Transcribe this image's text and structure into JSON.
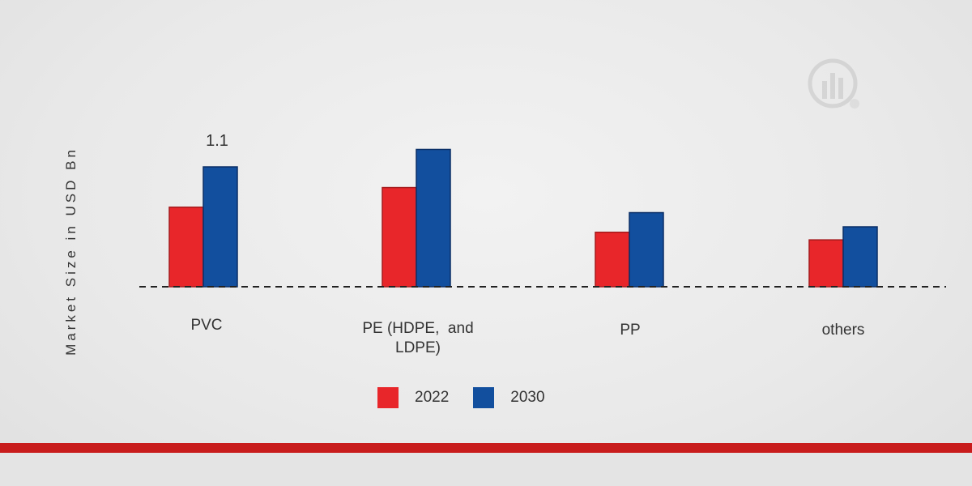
{
  "chart_data": {
    "type": "bar",
    "title": "",
    "xlabel": "",
    "ylabel": "Market Size in USD Bn",
    "categories": [
      "PVC",
      "PE (HDPE, and LDPE)",
      "PP",
      "others"
    ],
    "series": [
      {
        "name": "2022",
        "color": "#e8262a",
        "values": [
          0.73,
          0.91,
          0.5,
          0.43
        ]
      },
      {
        "name": "2030",
        "color": "#124f9e",
        "values": [
          1.1,
          1.26,
          0.68,
          0.55
        ]
      }
    ],
    "data_labels": [
      {
        "category": "PVC",
        "series": "2030",
        "text": "1.1"
      }
    ],
    "ylim": [
      0,
      1.5
    ],
    "grid": false,
    "legend": "bottom"
  },
  "category_lines": [
    [
      "PVC"
    ],
    [
      "PE (HDPE,  and",
      "LDPE)"
    ],
    [
      "PP"
    ],
    [
      "others"
    ]
  ],
  "accent_color": "#c81c1c"
}
